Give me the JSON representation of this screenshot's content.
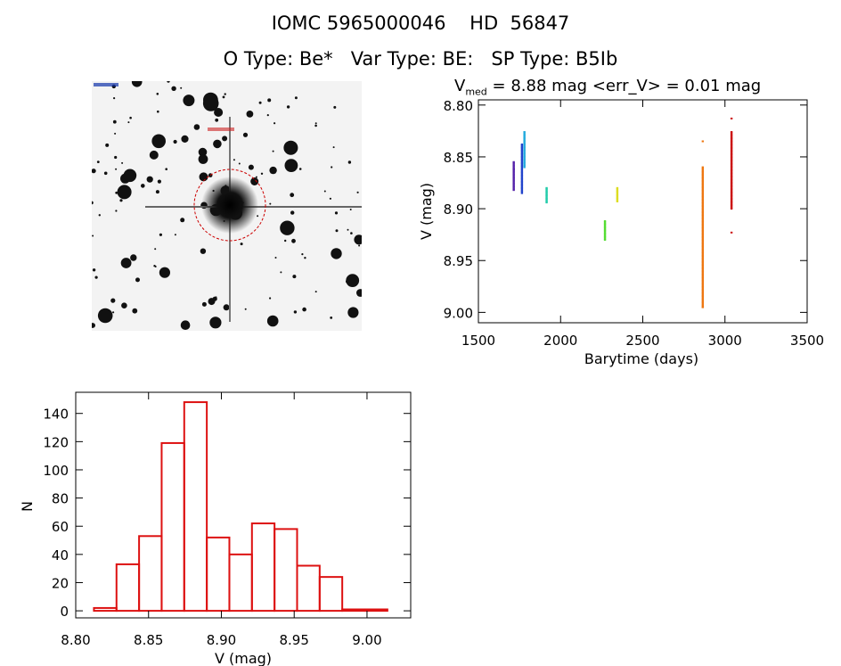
{
  "header": {
    "line1": "IOMC 5965000046    HD  56847",
    "line2": "O Type: Be*   Var Type: BE:   SP Type: B5Ib"
  },
  "image_panel": {
    "description_alt": "Sky field image centered on target star with red circle",
    "marker_color": "#cc0000"
  },
  "colors": {
    "hist": "#dd1111",
    "axis": "#000000"
  },
  "chart_data": [
    {
      "type": "scatter",
      "id": "light-curve",
      "title_parts": {
        "v": "V",
        "sub": "med",
        "rest": " = 8.88 mag <err_V> = 0.01 mag"
      },
      "xlabel": "Barytime (days)",
      "ylabel": "V (mag)",
      "xlim": [
        1500,
        3500
      ],
      "ylim": [
        9.01,
        8.795
      ],
      "xticks": [
        1500,
        2000,
        2500,
        3000,
        3500
      ],
      "yticks": [
        "8.80",
        "8.85",
        "8.90",
        "8.95",
        "9.00"
      ],
      "series": [
        {
          "name": "g1",
          "color": "#5522aa",
          "x": 1715,
          "ymin": 8.855,
          "ymax": 8.882
        },
        {
          "name": "g2",
          "color": "#2244cc",
          "x": 1765,
          "ymin": 8.838,
          "ymax": 8.885
        },
        {
          "name": "g3",
          "color": "#22aadd",
          "x": 1780,
          "ymin": 8.826,
          "ymax": 8.86
        },
        {
          "name": "g4",
          "color": "#22ccaa",
          "x": 1915,
          "ymin": 8.88,
          "ymax": 8.894
        },
        {
          "name": "g5",
          "color": "#55dd33",
          "x": 2270,
          "ymin": 8.912,
          "ymax": 8.93
        },
        {
          "name": "g6",
          "color": "#dddd22",
          "x": 2345,
          "ymin": 8.88,
          "ymax": 8.893
        },
        {
          "name": "g7",
          "color": "#ee7711",
          "x": 2865,
          "ymin": 8.86,
          "ymax": 8.995
        },
        {
          "name": "g8",
          "color": "#cc1111",
          "x": 3040,
          "ymin": 8.826,
          "ymax": 8.9
        }
      ],
      "outliers": [
        {
          "x": 2865,
          "y": 8.835,
          "color": "#ee7711"
        },
        {
          "x": 2865,
          "y": 8.995,
          "color": "#ee7711"
        },
        {
          "x": 3040,
          "y": 8.813,
          "color": "#cc1111"
        },
        {
          "x": 3040,
          "y": 8.923,
          "color": "#cc1111"
        },
        {
          "x": 1715,
          "y": 8.862,
          "color": "#5522aa"
        }
      ]
    },
    {
      "type": "bar",
      "id": "histogram",
      "xlabel": "V (mag)",
      "ylabel": "N",
      "xlim": [
        8.8,
        9.03
      ],
      "ylim": [
        -5,
        155
      ],
      "xticks": [
        "8.80",
        "8.85",
        "8.90",
        "8.95",
        "9.00"
      ],
      "yticks": [
        0,
        20,
        40,
        60,
        80,
        100,
        120,
        140
      ],
      "bin_start": 8.8125,
      "bin_width": 0.0155,
      "values": [
        2,
        33,
        53,
        119,
        148,
        52,
        40,
        62,
        58,
        32,
        24,
        1,
        1
      ]
    }
  ]
}
